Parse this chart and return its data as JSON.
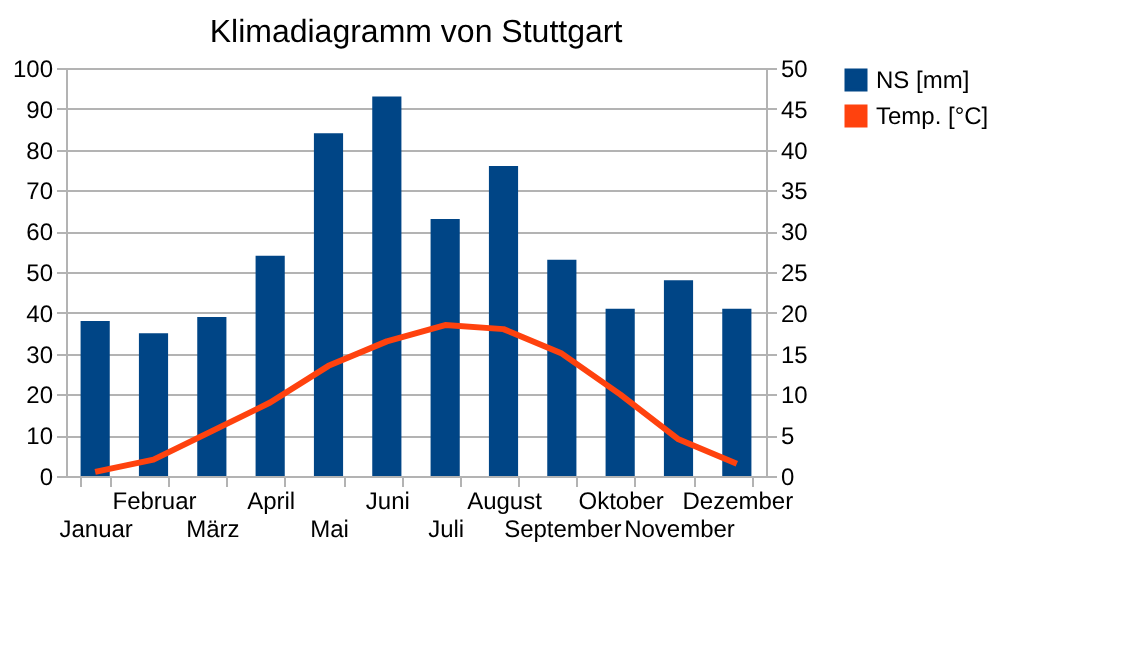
{
  "chart_data": {
    "type": "bar",
    "title": "Klimadiagramm von Stuttgart",
    "categories": [
      "Januar",
      "Februar",
      "März",
      "April",
      "Mai",
      "Juni",
      "Juli",
      "August",
      "September",
      "Oktober",
      "November",
      "Dezember"
    ],
    "series": [
      {
        "name": "NS [mm]",
        "color": "#004586",
        "values": [
          38,
          35,
          39,
          54,
          84,
          93,
          63,
          76,
          53,
          41,
          48,
          41
        ]
      },
      {
        "name": "Temp. [°C]",
        "type": "line",
        "axis": "y2",
        "color": "#ff420e",
        "values": [
          0.5,
          2,
          5.5,
          9,
          13.5,
          16.5,
          18.5,
          18,
          15,
          10,
          4.5,
          1.5
        ]
      }
    ],
    "ylim": [
      0,
      100
    ],
    "yticks": [
      0,
      10,
      20,
      30,
      40,
      50,
      60,
      70,
      80,
      90,
      100
    ],
    "y2lim": [
      0,
      50
    ],
    "y2ticks": [
      0,
      5,
      10,
      15,
      20,
      25,
      30,
      35,
      40,
      45,
      50
    ],
    "grid": "y",
    "legend": "right",
    "marker": "none"
  }
}
